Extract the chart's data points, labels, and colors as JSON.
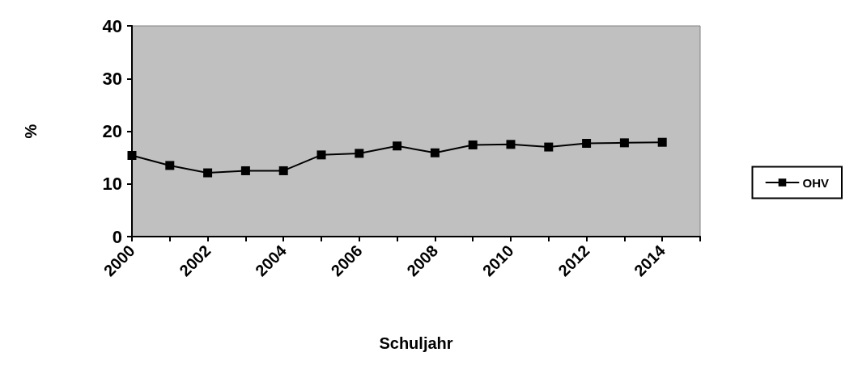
{
  "chart_data": {
    "type": "line",
    "xlabel": "Schuljahr",
    "ylabel": "%",
    "x": [
      2000,
      2001,
      2002,
      2003,
      2004,
      2005,
      2006,
      2007,
      2008,
      2009,
      2010,
      2011,
      2012,
      2013,
      2014
    ],
    "series": [
      {
        "name": "OHV",
        "color": "#000000",
        "values": [
          15.4,
          13.5,
          12.1,
          12.5,
          12.5,
          15.5,
          15.8,
          17.2,
          15.9,
          17.4,
          17.5,
          17.0,
          17.7,
          17.8,
          17.9
        ]
      }
    ],
    "xlim": [
      2000,
      2015
    ],
    "xticks": [
      2000,
      {
        "value": 2001,
        "label": null
      },
      2002,
      {
        "value": 2003,
        "label": null
      },
      2004,
      {
        "value": 2005,
        "label": null
      },
      2006,
      {
        "value": 2007,
        "label": null
      },
      2008,
      {
        "value": 2009,
        "label": null
      },
      2010,
      {
        "value": 2011,
        "label": null
      },
      2012,
      {
        "value": 2013,
        "label": null
      },
      2014,
      {
        "value": 2015,
        "label": null
      }
    ],
    "ylim": [
      0,
      40
    ],
    "yticks": [
      0,
      10,
      20,
      30,
      40
    ],
    "grid": false,
    "legend": "right",
    "marker": "square",
    "line_style": "solid"
  }
}
